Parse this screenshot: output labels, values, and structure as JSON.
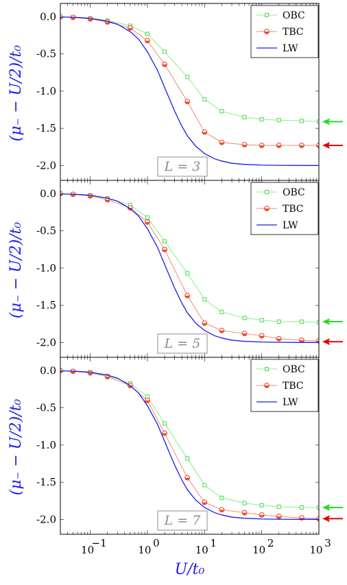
{
  "colors": {
    "obc": "#44dd44",
    "obc_line": "#88ee88",
    "tbc_edge": "#e84020",
    "tbc_line": "#f08878",
    "tbc_fill": "#f05028",
    "lw": "#1a1aee",
    "arrow_green": "#22dd22",
    "arrow_red": "#e80000",
    "axis_label": "#1a1aee",
    "lbox_text": "#8c8c8c"
  },
  "chart_data": [
    {
      "type": "line",
      "panel_label": "L = 3",
      "ylabel": "(μ₋ − U/2)/t₀",
      "xscale": "log",
      "xlim": [
        0.03,
        1000
      ],
      "ylim": [
        -2.2,
        0.18
      ],
      "yticks": [
        0.0,
        -0.5,
        -1.0,
        -1.5,
        -2.0
      ],
      "ytick_labels": [
        "0.0",
        "-0.5",
        "-1.0",
        "-1.5",
        "-2.0"
      ],
      "legend": "top-right",
      "series": [
        {
          "name": "OBC",
          "marker": "square",
          "x": [
            0.03,
            0.05,
            0.1,
            0.2,
            0.5,
            1,
            2,
            5,
            10,
            20,
            50,
            100,
            200,
            500,
            1000
          ],
          "y": [
            0.0,
            -0.005,
            -0.02,
            -0.05,
            -0.12,
            -0.23,
            -0.47,
            -0.81,
            -1.11,
            -1.27,
            -1.35,
            -1.38,
            -1.39,
            -1.4,
            -1.41
          ]
        },
        {
          "name": "TBC",
          "marker": "circle",
          "x": [
            0.03,
            0.05,
            0.1,
            0.2,
            0.5,
            1,
            2,
            5,
            10,
            20,
            50,
            100,
            200,
            500,
            1000
          ],
          "y": [
            0.0,
            -0.008,
            -0.03,
            -0.07,
            -0.15,
            -0.32,
            -0.64,
            -1.14,
            -1.55,
            -1.69,
            -1.72,
            -1.73,
            -1.73,
            -1.73,
            -1.73
          ]
        },
        {
          "name": "LW",
          "marker": "none",
          "x": [
            0.03,
            0.05,
            0.1,
            0.2,
            0.3,
            0.5,
            0.7,
            1,
            1.5,
            2,
            3,
            4,
            5,
            7,
            10,
            15,
            20,
            30,
            50,
            100,
            200,
            500,
            1000
          ],
          "y": [
            -0.003,
            -0.006,
            -0.02,
            -0.06,
            -0.1,
            -0.2,
            -0.3,
            -0.47,
            -0.72,
            -0.95,
            -1.27,
            -1.47,
            -1.6,
            -1.74,
            -1.84,
            -1.91,
            -1.94,
            -1.97,
            -1.985,
            -1.995,
            -1.998,
            -2.0,
            -2.0
          ]
        }
      ],
      "arrows": [
        {
          "color": "green",
          "y": -1.41
        },
        {
          "color": "red",
          "y": -1.73
        }
      ]
    },
    {
      "type": "line",
      "panel_label": "L = 5",
      "ylabel": "(μ₋ − U/2)/t₀",
      "xscale": "log",
      "xlim": [
        0.03,
        1000
      ],
      "ylim": [
        -2.2,
        0.18
      ],
      "yticks": [
        0.0,
        -0.5,
        -1.0,
        -1.5,
        -2.0
      ],
      "ytick_labels": [
        "0.0",
        "-0.5",
        "-1.0",
        "-1.5",
        "-2.0"
      ],
      "legend": "top-right",
      "series": [
        {
          "name": "OBC",
          "marker": "square",
          "x": [
            0.03,
            0.05,
            0.1,
            0.2,
            0.5,
            1,
            2,
            5,
            10,
            20,
            50,
            100,
            200,
            500,
            1000
          ],
          "y": [
            0.0,
            -0.005,
            -0.02,
            -0.06,
            -0.15,
            -0.32,
            -0.64,
            -1.07,
            -1.42,
            -1.59,
            -1.67,
            -1.7,
            -1.72,
            -1.72,
            -1.73
          ]
        },
        {
          "name": "TBC",
          "marker": "circle",
          "x": [
            0.03,
            0.05,
            0.1,
            0.2,
            0.5,
            1,
            2,
            5,
            10,
            20,
            50,
            100,
            200,
            500,
            1000
          ],
          "y": [
            0.0,
            -0.008,
            -0.03,
            -0.08,
            -0.19,
            -0.38,
            -0.75,
            -1.37,
            -1.74,
            -1.84,
            -1.88,
            -1.91,
            -1.95,
            -1.97,
            -1.98
          ]
        },
        {
          "name": "LW",
          "marker": "none",
          "x": [
            0.03,
            0.05,
            0.1,
            0.2,
            0.3,
            0.5,
            0.7,
            1,
            1.5,
            2,
            3,
            4,
            5,
            7,
            10,
            15,
            20,
            30,
            50,
            100,
            200,
            500,
            1000
          ],
          "y": [
            -0.003,
            -0.006,
            -0.02,
            -0.06,
            -0.1,
            -0.2,
            -0.3,
            -0.47,
            -0.72,
            -0.95,
            -1.27,
            -1.47,
            -1.6,
            -1.74,
            -1.84,
            -1.91,
            -1.94,
            -1.97,
            -1.985,
            -1.995,
            -1.998,
            -2.0,
            -2.0
          ]
        }
      ],
      "arrows": [
        {
          "color": "green",
          "y": -1.72
        },
        {
          "color": "red",
          "y": -1.99
        }
      ]
    },
    {
      "type": "line",
      "panel_label": "L = 7",
      "ylabel": "(μ₋ − U/2)/t₀",
      "xlabel": "U/t₀",
      "xscale": "log",
      "xlim": [
        0.03,
        1000
      ],
      "ylim": [
        -2.2,
        0.18
      ],
      "xticks": [
        0.1,
        1,
        10,
        100,
        1000
      ],
      "xtick_labels": [
        "10",
        "10",
        "10",
        "10",
        "10"
      ],
      "xtick_exponents": [
        "−1",
        "0",
        "1",
        "2",
        "3"
      ],
      "yticks": [
        0.0,
        -0.5,
        -1.0,
        -1.5,
        -2.0
      ],
      "ytick_labels": [
        "0.0",
        "-0.5",
        "-1.0",
        "-1.5",
        "-2.0"
      ],
      "legend": "top-right",
      "series": [
        {
          "name": "OBC",
          "marker": "square",
          "x": [
            0.03,
            0.05,
            0.1,
            0.2,
            0.5,
            1,
            2,
            5,
            10,
            20,
            50,
            100,
            200,
            500,
            1000
          ],
          "y": [
            0.0,
            -0.005,
            -0.02,
            -0.07,
            -0.17,
            -0.35,
            -0.71,
            -1.18,
            -1.54,
            -1.71,
            -1.78,
            -1.81,
            -1.83,
            -1.84,
            -1.84
          ]
        },
        {
          "name": "TBC",
          "marker": "circle",
          "x": [
            0.03,
            0.05,
            0.1,
            0.2,
            0.5,
            1,
            2,
            5,
            10,
            20,
            50,
            100,
            200,
            500,
            1000
          ],
          "y": [
            0.0,
            -0.008,
            -0.03,
            -0.08,
            -0.2,
            -0.4,
            -0.84,
            -1.44,
            -1.77,
            -1.87,
            -1.91,
            -1.94,
            -1.96,
            -1.98,
            -1.99
          ]
        },
        {
          "name": "LW",
          "marker": "none",
          "x": [
            0.03,
            0.05,
            0.1,
            0.2,
            0.3,
            0.5,
            0.7,
            1,
            1.5,
            2,
            3,
            4,
            5,
            7,
            10,
            15,
            20,
            30,
            50,
            100,
            200,
            500,
            1000
          ],
          "y": [
            -0.003,
            -0.006,
            -0.02,
            -0.06,
            -0.1,
            -0.2,
            -0.3,
            -0.47,
            -0.72,
            -0.95,
            -1.27,
            -1.47,
            -1.6,
            -1.74,
            -1.84,
            -1.91,
            -1.94,
            -1.97,
            -1.985,
            -1.995,
            -1.998,
            -2.0,
            -2.0
          ]
        }
      ],
      "arrows": [
        {
          "color": "green",
          "y": -1.84
        },
        {
          "color": "red",
          "y": -1.99
        }
      ]
    }
  ]
}
